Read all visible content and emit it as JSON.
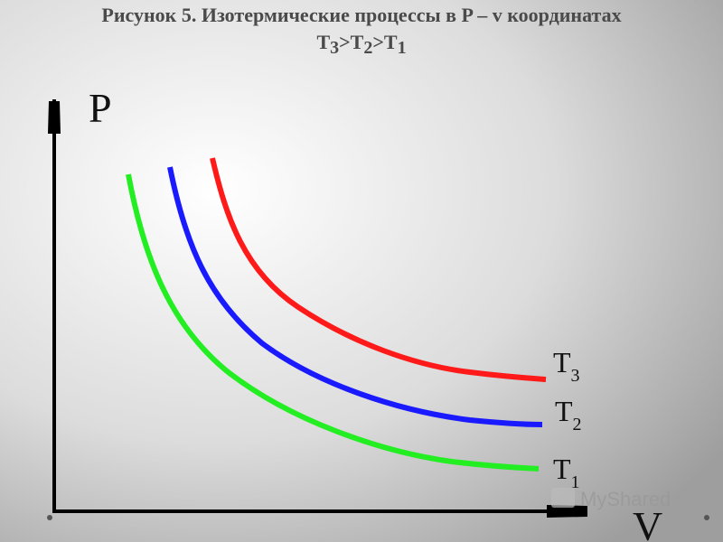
{
  "header": {
    "title": "Рисунок 5. Изотермические процессы в P – v координатах",
    "subtitle": [
      {
        "text": "T",
        "sub": "3"
      },
      {
        "text": ">T",
        "sub": "2"
      },
      {
        "text": ">T",
        "sub": "1"
      }
    ]
  },
  "axes": {
    "y_label": "P",
    "x_label": "V"
  },
  "curves": [
    {
      "letter": "T",
      "index": "3"
    },
    {
      "letter": "T",
      "index": "2"
    },
    {
      "letter": "T",
      "index": "1"
    }
  ],
  "watermark": "MyShared"
}
